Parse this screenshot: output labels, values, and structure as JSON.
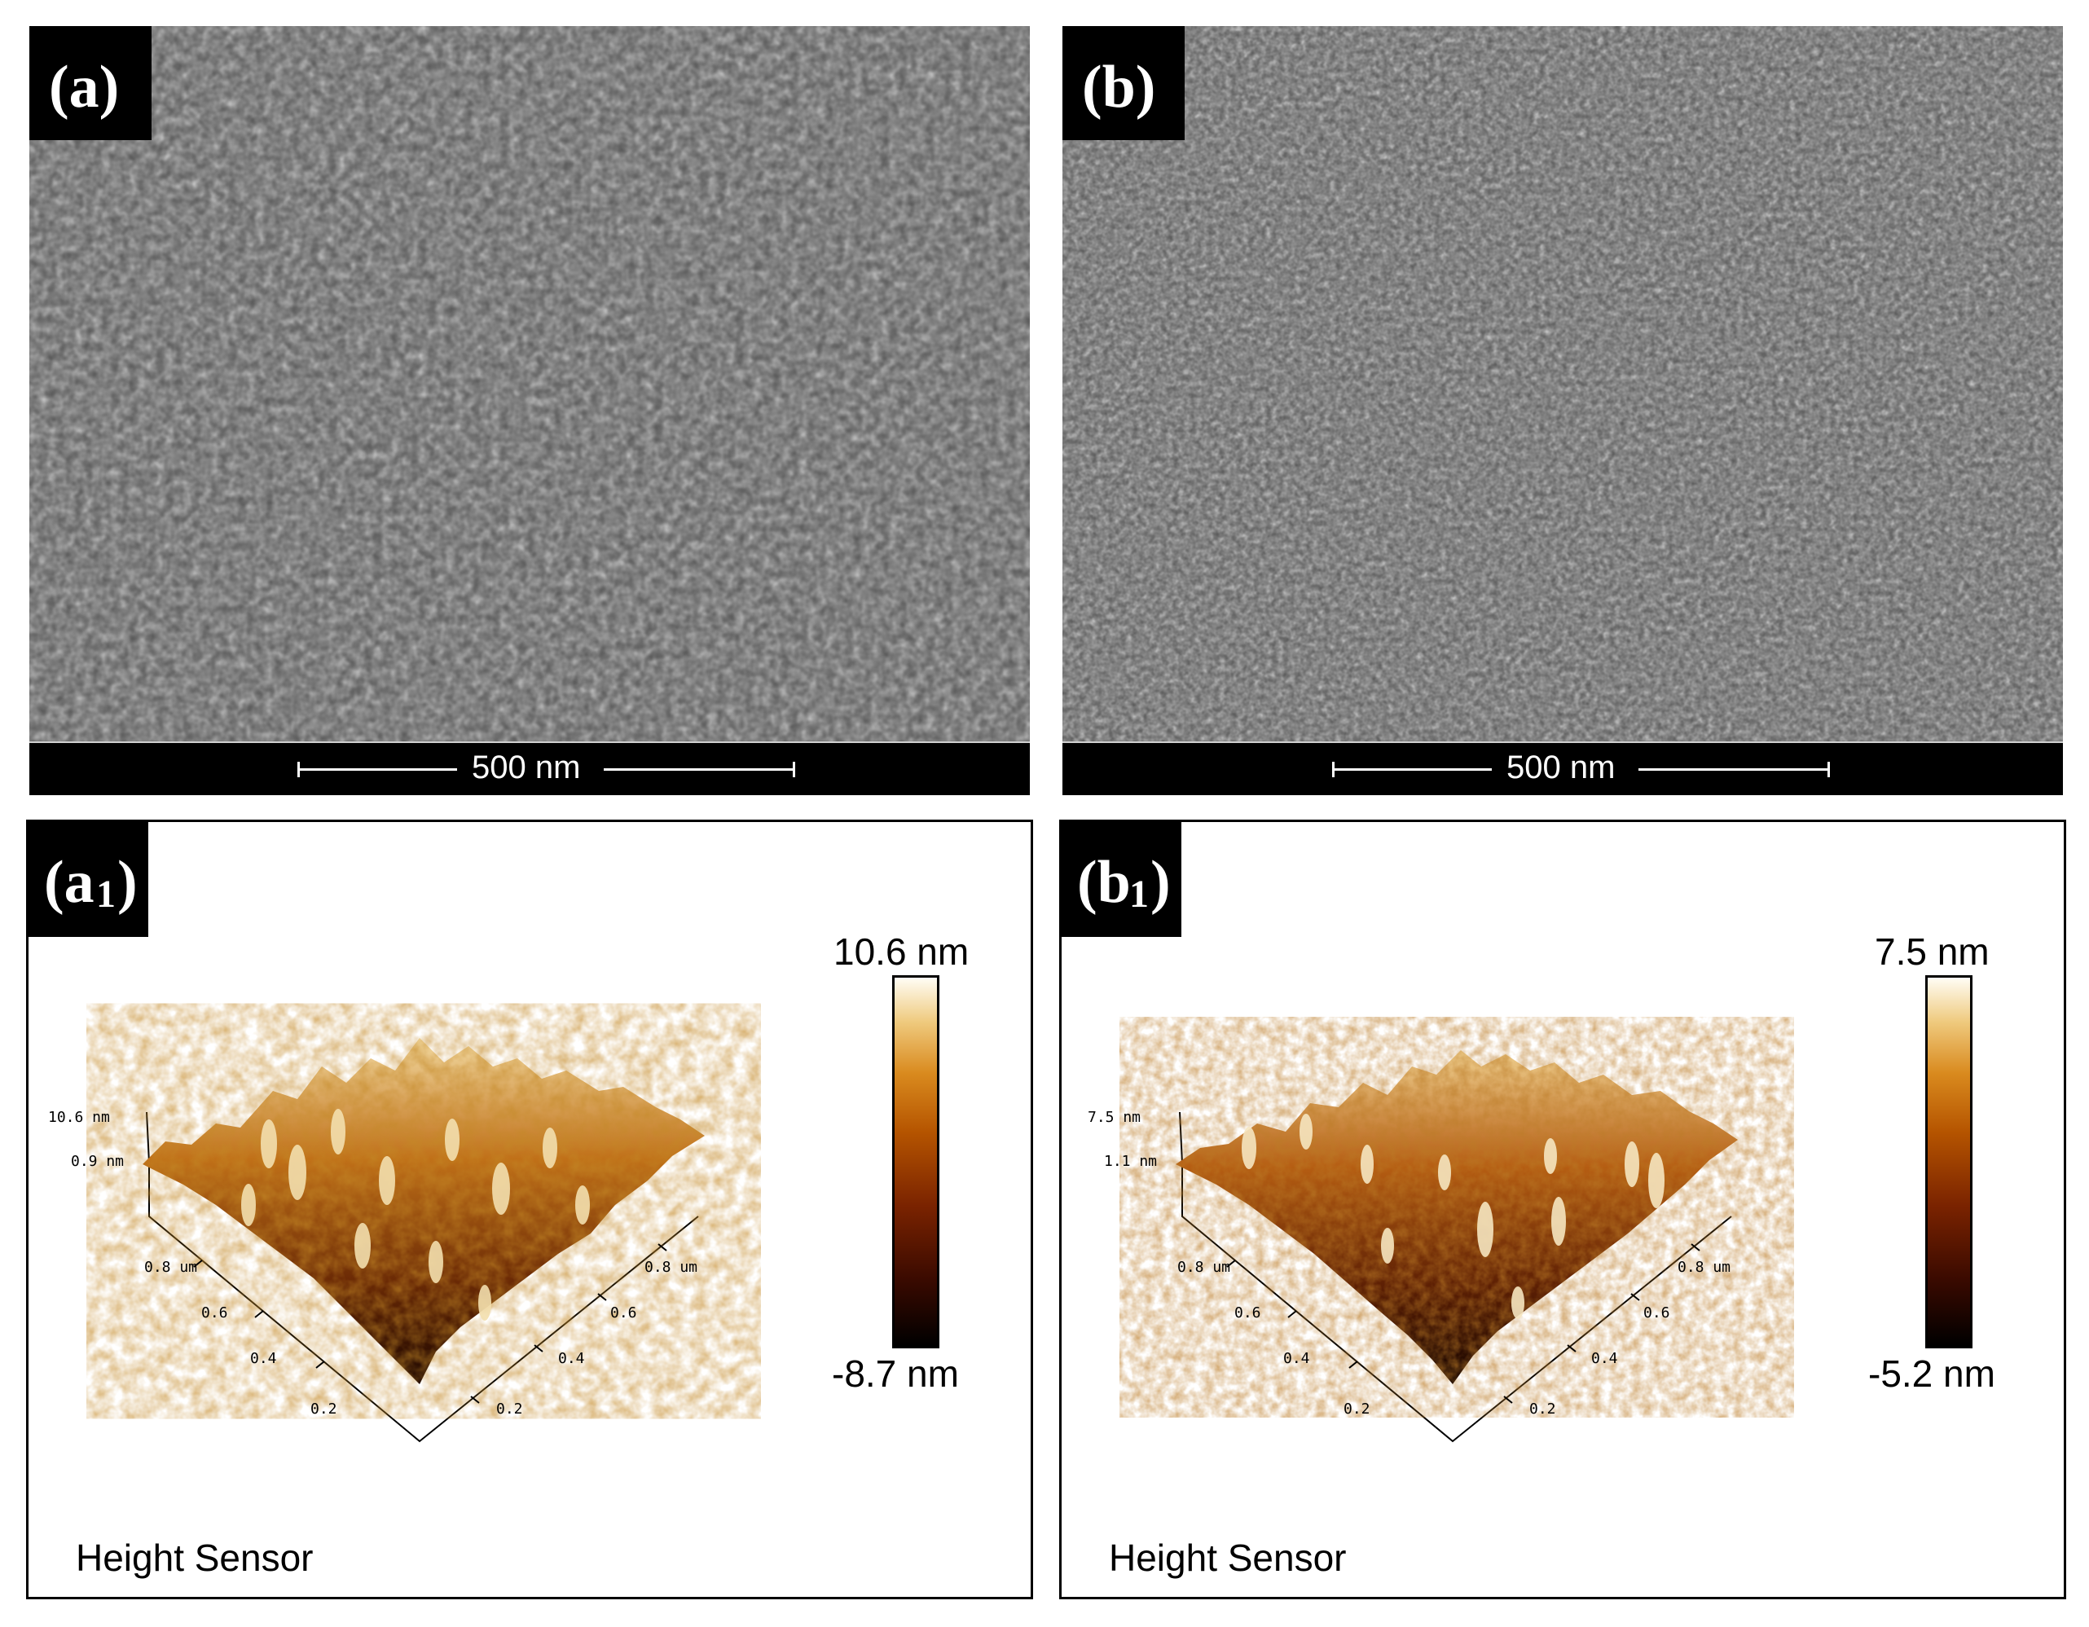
{
  "panels": {
    "a": {
      "label_main": "(a)",
      "scale_text": "500 nm"
    },
    "b": {
      "label_main": "(b)",
      "scale_text": "500 nm"
    },
    "a1": {
      "label_base": "(a",
      "label_sub": "1",
      "label_close": ")",
      "cbar_max": "10.6 nm",
      "cbar_min": "-8.7 nm",
      "z_max": "10.6 nm",
      "z_mid": "0.9 nm",
      "x_ticks": [
        "0.2",
        "0.4",
        "0.6",
        "0.8 um"
      ],
      "y_ticks": [
        "0.2",
        "0.4",
        "0.6",
        "0.8 um"
      ],
      "caption": "Height Sensor"
    },
    "b1": {
      "label_base": "(b",
      "label_sub": "1",
      "label_close": ")",
      "cbar_max": "7.5 nm",
      "cbar_min": "-5.2 nm",
      "z_max": "7.5 nm",
      "z_mid": "1.1 nm",
      "x_ticks": [
        "0.2",
        "0.4",
        "0.6",
        "0.8 um"
      ],
      "y_ticks": [
        "0.2",
        "0.4",
        "0.6",
        "0.8 um"
      ],
      "caption": "Height Sensor"
    }
  },
  "colors": {
    "sem_background": "#555555",
    "afm_low": "#000000",
    "afm_mid": "#b55400",
    "afm_high": "#fffdf5"
  }
}
